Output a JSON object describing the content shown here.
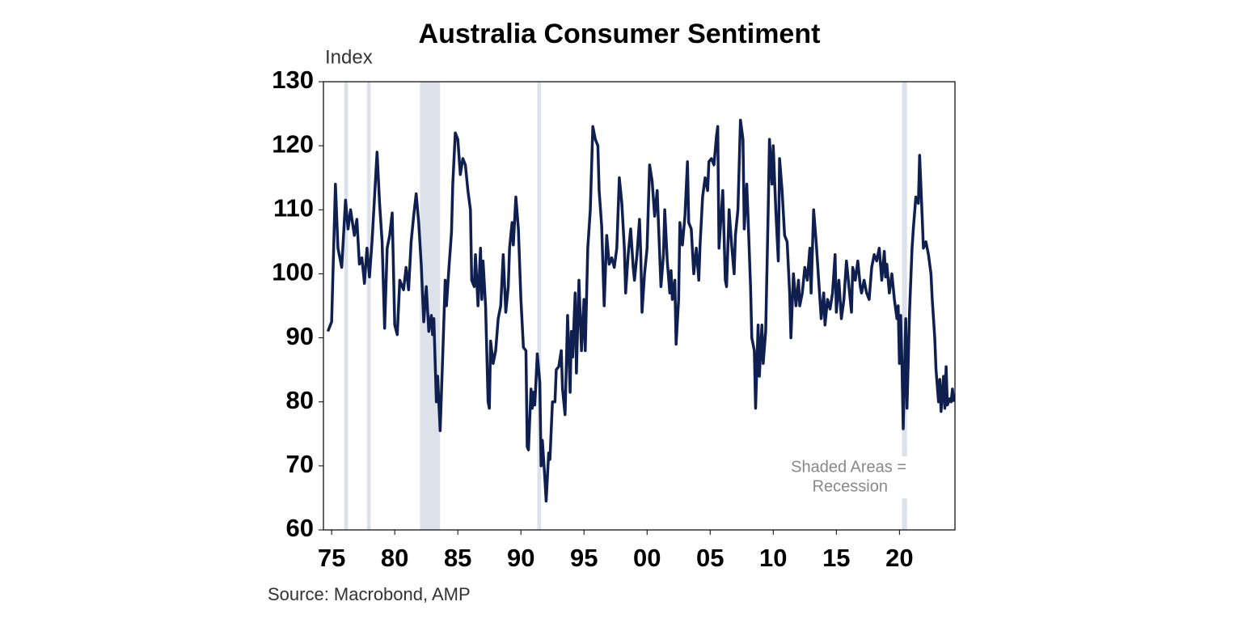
{
  "chart_data": {
    "type": "line",
    "title": "Australia Consumer Sentiment",
    "y_label": "Index",
    "source": "Source: Macrobond, AMP",
    "annotation": [
      "Shaded Areas =",
      "Recession"
    ],
    "xlim": [
      1974.35,
      2024.4
    ],
    "ylim": [
      60,
      130
    ],
    "yticks": [
      60,
      70,
      80,
      90,
      100,
      110,
      120,
      130
    ],
    "xticks": [
      {
        "value": 1975,
        "label": "75"
      },
      {
        "value": 1980,
        "label": "80"
      },
      {
        "value": 1985,
        "label": "85"
      },
      {
        "value": 1990,
        "label": "90"
      },
      {
        "value": 1995,
        "label": "95"
      },
      {
        "value": 2000,
        "label": "00"
      },
      {
        "value": 2005,
        "label": "05"
      },
      {
        "value": 2010,
        "label": "10"
      },
      {
        "value": 2015,
        "label": "15"
      },
      {
        "value": 2020,
        "label": "20"
      }
    ],
    "shaded": [
      [
        1976.0,
        1976.3
      ],
      [
        1977.8,
        1978.1
      ],
      [
        1982.0,
        1983.6
      ],
      [
        1991.3,
        1991.6
      ],
      [
        2020.2,
        2020.6
      ]
    ],
    "shade_color": "#dde2ea",
    "x": [
      1974.7,
      1975.0,
      1975.3,
      1975.5,
      1975.8,
      1976.1,
      1976.3,
      1976.5,
      1976.8,
      1977.0,
      1977.2,
      1977.4,
      1977.6,
      1977.8,
      1978.0,
      1978.2,
      1978.4,
      1978.6,
      1978.8,
      1979.0,
      1979.2,
      1979.4,
      1979.6,
      1979.8,
      1980.0,
      1980.2,
      1980.4,
      1980.7,
      1980.9,
      1981.1,
      1981.3,
      1981.5,
      1981.7,
      1981.9,
      1982.1,
      1982.3,
      1982.5,
      1982.7,
      1982.9,
      1983.0,
      1983.1,
      1983.3,
      1983.4,
      1983.6,
      1983.8,
      1984.0,
      1984.1,
      1984.3,
      1984.5,
      1984.6,
      1984.8,
      1985.0,
      1985.2,
      1985.4,
      1985.6,
      1985.8,
      1986.0,
      1986.1,
      1986.3,
      1986.4,
      1986.6,
      1986.8,
      1986.9,
      1987.0,
      1987.2,
      1987.4,
      1987.5,
      1987.6,
      1987.8,
      1988.0,
      1988.2,
      1988.4,
      1988.6,
      1988.8,
      1989.0,
      1989.1,
      1989.3,
      1989.4,
      1989.6,
      1989.8,
      1990.0,
      1990.2,
      1990.4,
      1990.5,
      1990.6,
      1990.8,
      1990.9,
      1991.0,
      1991.1,
      1991.3,
      1991.5,
      1991.6,
      1991.7,
      1991.9,
      1992.0,
      1992.2,
      1992.3,
      1992.5,
      1992.7,
      1992.8,
      1993.0,
      1993.2,
      1993.3,
      1993.5,
      1993.7,
      1993.9,
      1994.0,
      1994.1,
      1994.3,
      1994.4,
      1994.6,
      1994.8,
      1995.0,
      1995.1,
      1995.3,
      1995.5,
      1995.7,
      1995.9,
      1996.1,
      1996.2,
      1996.4,
      1996.6,
      1996.8,
      1997.0,
      1997.2,
      1997.4,
      1997.6,
      1997.8,
      1998.0,
      1998.2,
      1998.3,
      1998.5,
      1998.7,
      1998.9,
      1999.0,
      1999.2,
      1999.4,
      1999.5,
      1999.6,
      1999.8,
      2000.0,
      2000.2,
      2000.4,
      2000.6,
      2000.8,
      2001.0,
      2001.1,
      2001.3,
      2001.4,
      2001.6,
      2001.8,
      2001.9,
      2002.0,
      2002.2,
      2002.3,
      2002.5,
      2002.6,
      2002.8,
      2003.0,
      2003.2,
      2003.3,
      2003.5,
      2003.7,
      2003.9,
      2004.1,
      2004.2,
      2004.4,
      2004.6,
      2004.8,
      2004.9,
      2005.1,
      2005.3,
      2005.5,
      2005.6,
      2005.7,
      2005.9,
      2006.0,
      2006.2,
      2006.3,
      2006.5,
      2006.7,
      2006.9,
      2007.0,
      2007.2,
      2007.4,
      2007.6,
      2007.7,
      2007.9,
      2008.0,
      2008.2,
      2008.3,
      2008.5,
      2008.6,
      2008.8,
      2008.9,
      2009.1,
      2009.2,
      2009.4,
      2009.6,
      2009.7,
      2009.9,
      2010.0,
      2010.2,
      2010.4,
      2010.5,
      2010.7,
      2010.9,
      2011.1,
      2011.3,
      2011.4,
      2011.6,
      2011.8,
      2012.0,
      2012.1,
      2012.3,
      2012.5,
      2012.7,
      2012.9,
      2013.0,
      2013.2,
      2013.4,
      2013.6,
      2013.8,
      2014.0,
      2014.1,
      2014.3,
      2014.5,
      2014.7,
      2014.9,
      2015.0,
      2015.2,
      2015.4,
      2015.6,
      2015.8,
      2016.0,
      2016.2,
      2016.3,
      2016.5,
      2016.7,
      2016.9,
      2017.0,
      2017.2,
      2017.4,
      2017.6,
      2017.8,
      2018.0,
      2018.2,
      2018.4,
      2018.6,
      2018.8,
      2018.9,
      2019.0,
      2019.2,
      2019.4,
      2019.6,
      2019.8,
      2019.9,
      2020.0,
      2020.1,
      2020.2,
      2020.3,
      2020.5,
      2020.6,
      2020.8,
      2021.0,
      2021.1,
      2021.3,
      2021.5,
      2021.6,
      2021.8,
      2021.9,
      2022.1,
      2022.3,
      2022.5,
      2022.6,
      2022.8,
      2022.9,
      2023.1,
      2023.2,
      2023.3,
      2023.5,
      2023.6,
      2023.7,
      2023.8,
      2024.0,
      2024.1,
      2024.2,
      2024.3
    ],
    "series": [
      {
        "name": "Consumer Sentiment",
        "color": "#0f1f4f",
        "values": [
          91,
          92.5,
          114,
          104,
          101,
          111.5,
          107,
          110,
          106,
          108.5,
          101.5,
          102.5,
          98.5,
          104,
          99.5,
          105,
          112,
          119,
          111,
          105,
          91.5,
          104,
          106,
          109.5,
          92,
          90.5,
          99,
          97.5,
          101,
          97.5,
          105,
          109,
          112.5,
          108,
          101.5,
          92.5,
          98,
          91,
          93.5,
          90.5,
          93,
          80,
          84,
          75.5,
          87,
          99,
          95,
          101,
          106.5,
          114,
          122,
          121,
          115.5,
          118,
          117,
          113,
          110,
          99,
          98,
          103,
          95,
          104,
          96,
          102,
          95,
          80,
          79,
          89.5,
          86,
          88,
          93,
          95,
          103,
          94,
          98,
          104,
          108,
          104.5,
          112,
          107,
          96,
          88.5,
          88,
          73,
          72.5,
          82,
          79,
          81.5,
          79.5,
          87.5,
          83,
          70,
          74,
          68,
          64.5,
          72,
          71,
          80,
          80,
          85,
          85.5,
          88,
          82,
          78,
          93.5,
          81.5,
          91,
          87,
          97,
          84.5,
          99,
          88,
          96,
          88,
          104,
          110,
          123,
          121,
          120,
          113,
          107.5,
          95,
          106,
          101.5,
          102.5,
          101,
          104,
          115,
          111,
          104,
          97,
          103,
          107,
          101,
          99,
          103,
          108.5,
          103,
          94,
          100,
          104,
          117,
          114.5,
          109,
          113,
          103,
          98,
          103,
          110,
          102,
          97,
          100.5,
          96,
          99,
          89,
          96,
          108,
          104.5,
          109,
          117.5,
          108,
          107,
          100,
          104,
          99,
          104.5,
          112,
          115,
          113,
          117.5,
          118,
          117,
          121.5,
          123,
          104,
          110,
          113,
          99,
          98,
          110,
          104.5,
          100,
          106,
          110,
          124,
          121,
          107,
          114,
          109,
          98,
          90,
          88,
          79,
          92,
          84,
          92,
          86,
          91,
          110,
          121,
          114,
          120,
          110,
          102,
          118,
          113,
          106,
          105,
          97,
          90,
          100,
          95,
          99,
          95,
          97,
          101,
          99,
          104,
          97,
          110,
          105,
          99,
          93,
          97,
          92,
          96,
          94.5,
          97,
          103,
          94,
          99,
          93,
          96,
          102,
          98,
          94,
          101,
          99,
          102,
          98,
          97,
          99,
          97,
          96,
          101,
          103,
          102,
          104,
          99,
          103.5,
          99.5,
          101.5,
          97,
          100,
          96,
          93,
          95,
          86,
          93.5,
          86,
          75.8,
          93,
          79,
          94,
          104,
          107,
          112,
          111,
          118.5,
          109,
          104,
          105,
          103,
          100,
          96,
          90,
          85,
          80,
          83.5,
          78.5,
          84,
          79,
          85.5,
          79.5,
          80.5,
          80,
          82,
          80
        ]
      }
    ]
  }
}
